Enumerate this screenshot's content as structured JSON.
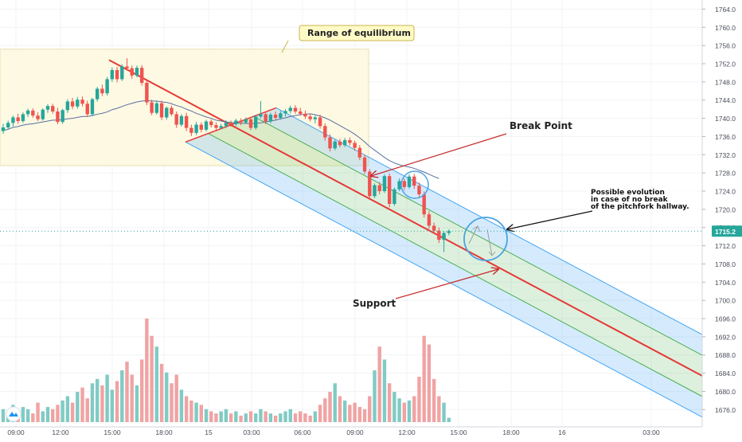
{
  "chart_data": {
    "type": "candlestick",
    "price_axis": {
      "ticks": [
        "1764.0",
        "1760.0",
        "1756.0",
        "1752.0",
        "1748.0",
        "1744.0",
        "1740.0",
        "1736.0",
        "1732.0",
        "1728.0",
        "1724.0",
        "1720.0",
        "1716.0",
        "1712.0",
        "1708.0",
        "1704.0",
        "1700.0",
        "1696.0",
        "1692.0",
        "1688.0",
        "1684.0",
        "1680.0",
        "1676.0"
      ],
      "range": [
        1675,
        1766
      ],
      "current_price": "1715.2",
      "current_price_value": 1715.2
    },
    "time_axis": {
      "ticks": [
        "09:00",
        "12:00",
        "15:00",
        "18:00",
        "15",
        "03:00",
        "06:00",
        "09:00",
        "12:00",
        "15:00",
        "18:00",
        "16",
        "03:00"
      ]
    },
    "candles": [
      [
        1737.2,
        1738.8,
        1736.6,
        1738.0
      ],
      [
        1738.0,
        1739.5,
        1737.5,
        1739.0
      ],
      [
        1739.0,
        1740.6,
        1738.2,
        1740.2
      ],
      [
        1740.2,
        1741.0,
        1738.8,
        1739.4
      ],
      [
        1739.4,
        1741.3,
        1739.0,
        1740.9
      ],
      [
        1740.9,
        1742.1,
        1740.3,
        1741.7
      ],
      [
        1741.7,
        1742.2,
        1740.1,
        1740.6
      ],
      [
        1740.6,
        1741.3,
        1739.4,
        1739.8
      ],
      [
        1739.8,
        1742.2,
        1739.5,
        1741.9
      ],
      [
        1741.9,
        1743.1,
        1741.2,
        1742.7
      ],
      [
        1742.7,
        1743.2,
        1741.0,
        1741.5
      ],
      [
        1741.5,
        1742.3,
        1738.7,
        1739.2
      ],
      [
        1739.2,
        1742.1,
        1738.8,
        1741.8
      ],
      [
        1741.8,
        1744.2,
        1741.2,
        1743.7
      ],
      [
        1743.7,
        1744.5,
        1742.0,
        1742.6
      ],
      [
        1742.6,
        1744.7,
        1742.1,
        1744.1
      ],
      [
        1744.1,
        1744.8,
        1742.6,
        1743.2
      ],
      [
        1743.2,
        1743.9,
        1740.3,
        1740.9
      ],
      [
        1740.9,
        1744.5,
        1740.5,
        1744.2
      ],
      [
        1744.2,
        1746.9,
        1743.7,
        1746.5
      ],
      [
        1746.5,
        1747.4,
        1744.9,
        1745.5
      ],
      [
        1745.5,
        1749.1,
        1745.0,
        1748.6
      ],
      [
        1748.6,
        1751.2,
        1748.0,
        1750.6
      ],
      [
        1750.6,
        1751.3,
        1747.9,
        1748.6
      ],
      [
        1748.6,
        1751.9,
        1748.2,
        1751.4
      ],
      [
        1751.4,
        1753.2,
        1750.5,
        1751.0
      ],
      [
        1751.0,
        1751.6,
        1748.7,
        1749.4
      ],
      [
        1749.4,
        1751.6,
        1749.0,
        1751.1
      ],
      [
        1751.1,
        1751.7,
        1747.2,
        1747.8
      ],
      [
        1747.8,
        1748.3,
        1742.9,
        1743.5
      ],
      [
        1743.5,
        1744.1,
        1740.7,
        1741.2
      ],
      [
        1741.2,
        1743.8,
        1740.8,
        1743.3
      ],
      [
        1743.3,
        1743.9,
        1739.6,
        1740.2
      ],
      [
        1740.2,
        1742.6,
        1739.7,
        1742.3
      ],
      [
        1742.3,
        1742.8,
        1740.5,
        1740.9
      ],
      [
        1740.9,
        1741.5,
        1737.9,
        1738.6
      ],
      [
        1738.6,
        1740.9,
        1738.2,
        1740.5
      ],
      [
        1740.5,
        1741.2,
        1737.2,
        1737.9
      ],
      [
        1737.9,
        1738.6,
        1736.1,
        1736.8
      ],
      [
        1736.8,
        1739.2,
        1736.3,
        1738.6
      ],
      [
        1738.6,
        1739.1,
        1736.9,
        1737.5
      ],
      [
        1737.5,
        1739.7,
        1737.1,
        1739.3
      ],
      [
        1739.3,
        1739.8,
        1738.0,
        1738.5
      ],
      [
        1738.5,
        1739.1,
        1737.5,
        1737.9
      ],
      [
        1737.9,
        1738.8,
        1737.6,
        1738.3
      ],
      [
        1738.3,
        1739.6,
        1737.9,
        1739.0
      ],
      [
        1739.0,
        1739.5,
        1738.2,
        1738.7
      ],
      [
        1738.7,
        1739.9,
        1738.3,
        1739.5
      ],
      [
        1739.5,
        1740.0,
        1738.5,
        1739.1
      ],
      [
        1739.1,
        1740.2,
        1738.7,
        1739.8
      ],
      [
        1739.8,
        1740.3,
        1737.4,
        1737.9
      ],
      [
        1737.9,
        1740.8,
        1737.5,
        1740.4
      ],
      [
        1740.4,
        1743.8,
        1740.0,
        1740.9
      ],
      [
        1740.9,
        1741.5,
        1738.7,
        1739.3
      ],
      [
        1739.3,
        1741.2,
        1738.9,
        1740.8
      ],
      [
        1740.8,
        1741.5,
        1739.5,
        1740.1
      ],
      [
        1740.1,
        1741.6,
        1739.7,
        1741.1
      ],
      [
        1741.1,
        1742.0,
        1740.4,
        1741.6
      ],
      [
        1741.6,
        1742.8,
        1741.1,
        1742.3
      ],
      [
        1742.3,
        1742.9,
        1741.0,
        1741.5
      ],
      [
        1741.5,
        1742.3,
        1740.6,
        1741.0
      ],
      [
        1741.0,
        1741.7,
        1739.9,
        1740.4
      ],
      [
        1740.4,
        1741.1,
        1739.3,
        1739.8
      ],
      [
        1739.8,
        1740.6,
        1738.9,
        1740.2
      ],
      [
        1740.2,
        1740.8,
        1737.7,
        1738.3
      ],
      [
        1738.3,
        1738.9,
        1735.1,
        1735.8
      ],
      [
        1735.8,
        1736.5,
        1732.7,
        1733.4
      ],
      [
        1733.4,
        1735.3,
        1733.0,
        1734.9
      ],
      [
        1734.9,
        1735.5,
        1733.6,
        1734.1
      ],
      [
        1734.1,
        1735.7,
        1733.7,
        1735.2
      ],
      [
        1735.2,
        1735.8,
        1734.0,
        1734.6
      ],
      [
        1734.6,
        1735.1,
        1732.9,
        1733.5
      ],
      [
        1733.5,
        1734.1,
        1730.8,
        1731.4
      ],
      [
        1731.4,
        1732.0,
        1727.7,
        1728.3
      ],
      [
        1728.3,
        1728.9,
        1722.3,
        1722.9
      ],
      [
        1722.9,
        1725.7,
        1722.5,
        1725.3
      ],
      [
        1725.3,
        1726.0,
        1723.3,
        1724.0
      ],
      [
        1724.0,
        1727.7,
        1723.6,
        1727.3
      ],
      [
        1727.3,
        1727.9,
        1720.4,
        1721.2
      ],
      [
        1721.2,
        1724.8,
        1720.8,
        1724.4
      ],
      [
        1724.4,
        1726.8,
        1724.0,
        1726.2
      ],
      [
        1726.2,
        1726.8,
        1724.2,
        1724.9
      ],
      [
        1724.9,
        1727.7,
        1724.5,
        1727.2
      ],
      [
        1727.2,
        1727.8,
        1724.5,
        1725.2
      ],
      [
        1725.2,
        1725.9,
        1722.7,
        1723.3
      ],
      [
        1723.3,
        1723.9,
        1718.2,
        1718.9
      ],
      [
        1718.9,
        1719.6,
        1715.7,
        1716.4
      ],
      [
        1716.4,
        1717.1,
        1714.7,
        1715.3
      ],
      [
        1715.3,
        1716.0,
        1712.6,
        1713.3
      ],
      [
        1713.3,
        1715.2,
        1710.6,
        1714.8
      ],
      [
        1714.8,
        1715.6,
        1714.3,
        1715.2
      ]
    ],
    "volumes": [
      6,
      4,
      8,
      5,
      7,
      6,
      4,
      9,
      5,
      7,
      6,
      8,
      10,
      12,
      9,
      14,
      16,
      11,
      18,
      20,
      17,
      22,
      15,
      19,
      24,
      28,
      22,
      17,
      29,
      48,
      40,
      35,
      27,
      23,
      18,
      22,
      15,
      12,
      10,
      9,
      8,
      6,
      5,
      4,
      5,
      6,
      4,
      5,
      3,
      4,
      5,
      4,
      6,
      5,
      4,
      3,
      4,
      5,
      6,
      4,
      5,
      4,
      3,
      5,
      8,
      11,
      14,
      18,
      12,
      10,
      8,
      9,
      7,
      6,
      12,
      24,
      35,
      29,
      18,
      14,
      11,
      9,
      10,
      12,
      21,
      40,
      36,
      20,
      12,
      9,
      2
    ],
    "indicator_line": {
      "type": "moving_average",
      "color": "#5a6f9e",
      "values": [
        1737.3,
        1737.6,
        1738.0,
        1738.2,
        1738.5,
        1738.7,
        1738.8,
        1739.0,
        1739.2,
        1739.4,
        1739.6,
        1739.6,
        1739.7,
        1739.9,
        1740.0,
        1740.2,
        1740.4,
        1740.4,
        1740.6,
        1740.9,
        1741.1,
        1741.4,
        1741.9,
        1742.2,
        1742.6,
        1743.0,
        1743.3,
        1743.6,
        1743.8,
        1743.9,
        1743.8,
        1743.8,
        1743.6,
        1743.5,
        1743.2,
        1742.8,
        1742.5,
        1742.0,
        1741.6,
        1741.1,
        1740.7,
        1740.3,
        1740.0,
        1739.6,
        1739.4,
        1739.2,
        1739.1,
        1739.0,
        1738.9,
        1738.9,
        1738.8,
        1738.9,
        1739.0,
        1739.2,
        1739.4,
        1739.6,
        1739.9,
        1740.1,
        1740.4,
        1740.6,
        1740.8,
        1740.9,
        1741.0,
        1740.8,
        1740.5,
        1740.1,
        1739.6,
        1739.0,
        1738.4,
        1737.8,
        1737.2,
        1736.5,
        1735.7,
        1734.8,
        1733.8,
        1733.0,
        1732.2,
        1731.4,
        1730.7,
        1730.2,
        1729.8,
        1729.5,
        1729.3,
        1729.0,
        1728.6,
        1728.2,
        1727.7,
        1727.2,
        1726.8
      ]
    },
    "pitchfork": {
      "pivot": [
        1752.8,
        1714.5
      ],
      "upper_anchor_time": 1742.3,
      "lower_anchor_time": 1734.8,
      "median_color": "#e53935",
      "outer_color": "#42a5f5",
      "inner_color": "#4caf50"
    },
    "annotations": {
      "range_label": "Range of equilibrium",
      "break_point": "Break Point",
      "support": "Support",
      "evolution": [
        "Possible evolution",
        "in case of no break",
        "of the pitchfork hallway."
      ]
    },
    "colors": {
      "up": "#26a69a",
      "down": "#ef5350",
      "range_box": "#fdf9e3",
      "range_box_border": "#e8dfae",
      "label_bg": "#fffbc7",
      "label_border": "#c9b64d",
      "arrow": "#c62828",
      "black_arrow": "#111111",
      "circle": "#4ba3e3",
      "grid": "#f1f3f6",
      "price_line": "#26a69a"
    }
  }
}
